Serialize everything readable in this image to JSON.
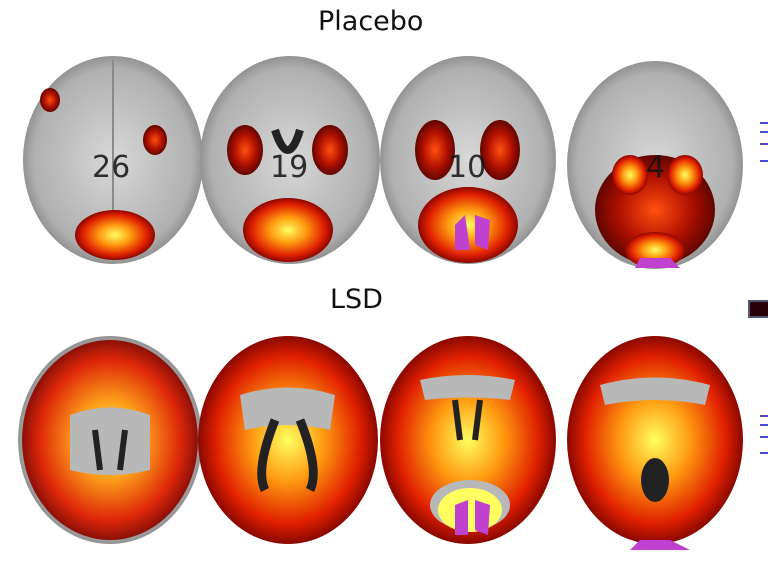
{
  "rows": [
    {
      "label": "Placebo",
      "slices": [
        "26",
        "19",
        "10",
        "4"
      ],
      "condition": "placebo"
    },
    {
      "label": "LSD",
      "slices": [
        "",
        "",
        "",
        ""
      ],
      "condition": "lsd"
    }
  ],
  "colormap": {
    "low": "#7a0a00",
    "mid": "#ff4a00",
    "high": "#ffff40",
    "overlap": "#c040d0"
  },
  "colors": {
    "brain": "#b8b8b8",
    "tick": "#4a4ad0"
  }
}
